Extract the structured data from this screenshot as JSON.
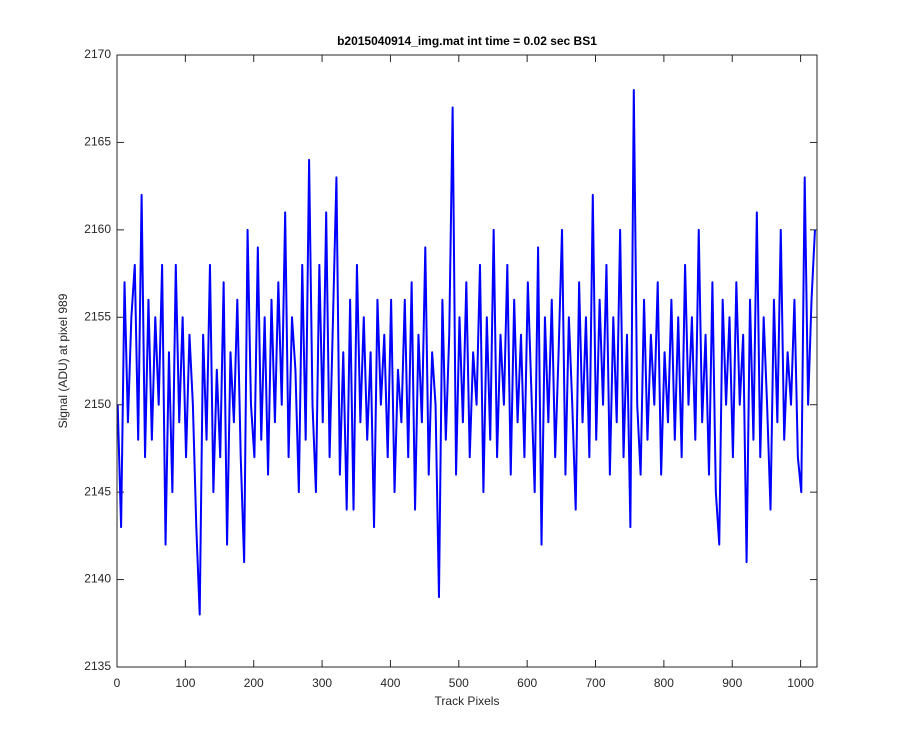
{
  "chart_data": {
    "type": "line",
    "title": "b2015040914_img.mat int time = 0.02 sec   BS1",
    "xlabel": "Track Pixels",
    "ylabel": "Signal (ADU) at pixel 989",
    "xlim": [
      0,
      1024
    ],
    "xticks": [
      0,
      100,
      200,
      300,
      400,
      500,
      600,
      700,
      800,
      900,
      1000
    ],
    "ylim": [
      2135,
      2170
    ],
    "yticks": [
      2135,
      2140,
      2145,
      2150,
      2155,
      2160,
      2165,
      2170
    ],
    "grid": false,
    "x": [
      1,
      6,
      11,
      16,
      21,
      26,
      31,
      36,
      41,
      46,
      51,
      56,
      61,
      66,
      71,
      76,
      81,
      86,
      91,
      96,
      101,
      106,
      111,
      116,
      121,
      126,
      131,
      136,
      141,
      146,
      151,
      156,
      161,
      166,
      171,
      176,
      181,
      186,
      191,
      196,
      201,
      206,
      211,
      216,
      221,
      226,
      231,
      236,
      241,
      246,
      251,
      256,
      261,
      266,
      271,
      276,
      281,
      286,
      291,
      296,
      301,
      306,
      311,
      316,
      321,
      326,
      331,
      336,
      341,
      346,
      351,
      356,
      361,
      366,
      371,
      376,
      381,
      386,
      391,
      396,
      401,
      406,
      411,
      416,
      421,
      426,
      431,
      436,
      441,
      446,
      451,
      456,
      461,
      466,
      471,
      476,
      481,
      486,
      491,
      496,
      501,
      506,
      511,
      516,
      521,
      526,
      531,
      536,
      541,
      546,
      551,
      556,
      561,
      566,
      571,
      576,
      581,
      586,
      591,
      596,
      601,
      606,
      611,
      616,
      621,
      626,
      631,
      636,
      641,
      646,
      651,
      656,
      661,
      666,
      671,
      676,
      681,
      686,
      691,
      696,
      701,
      706,
      711,
      716,
      721,
      726,
      731,
      736,
      741,
      746,
      751,
      756,
      761,
      766,
      771,
      776,
      781,
      786,
      791,
      796,
      801,
      806,
      811,
      816,
      821,
      826,
      831,
      836,
      841,
      846,
      851,
      856,
      861,
      866,
      871,
      876,
      881,
      886,
      891,
      896,
      901,
      906,
      911,
      916,
      921,
      926,
      931,
      936,
      941,
      946,
      951,
      956,
      961,
      966,
      971,
      976,
      981,
      986,
      991,
      996,
      1001,
      1006,
      1011,
      1016,
      1021
    ],
    "series": [
      {
        "color": "#0000ff",
        "values": [
          2150,
          2143,
          2157,
          2149,
          2155,
          2158,
          2148,
          2162,
          2147,
          2156,
          2148,
          2155,
          2150,
          2158,
          2142,
          2153,
          2145,
          2158,
          2149,
          2155,
          2147,
          2154,
          2150,
          2143,
          2138,
          2154,
          2148,
          2158,
          2145,
          2152,
          2147,
          2157,
          2142,
          2153,
          2149,
          2156,
          2147,
          2141,
          2160,
          2150,
          2147,
          2159,
          2148,
          2155,
          2146,
          2156,
          2149,
          2157,
          2150,
          2161,
          2147,
          2155,
          2152,
          2145,
          2158,
          2148,
          2164,
          2150,
          2145,
          2158,
          2149,
          2161,
          2147,
          2155,
          2163,
          2146,
          2153,
          2144,
          2156,
          2144,
          2158,
          2149,
          2155,
          2148,
          2153,
          2143,
          2156,
          2150,
          2154,
          2147,
          2156,
          2145,
          2152,
          2149,
          2156,
          2147,
          2157,
          2144,
          2154,
          2149,
          2159,
          2146,
          2153,
          2150,
          2139,
          2156,
          2148,
          2154,
          2167,
          2146,
          2155,
          2149,
          2157,
          2147,
          2153,
          2150,
          2158,
          2145,
          2155,
          2148,
          2160,
          2147,
          2154,
          2150,
          2158,
          2146,
          2156,
          2149,
          2154,
          2147,
          2157,
          2151,
          2145,
          2159,
          2142,
          2155,
          2149,
          2156,
          2147,
          2153,
          2160,
          2146,
          2155,
          2150,
          2144,
          2157,
          2149,
          2155,
          2147,
          2162,
          2148,
          2156,
          2150,
          2158,
          2146,
          2155,
          2149,
          2160,
          2147,
          2154,
          2143,
          2168,
          2150,
          2146,
          2156,
          2148,
          2154,
          2150,
          2157,
          2146,
          2153,
          2149,
          2156,
          2148,
          2155,
          2147,
          2158,
          2150,
          2155,
          2148,
          2160,
          2149,
          2154,
          2146,
          2157,
          2145,
          2142,
          2156,
          2150,
          2155,
          2147,
          2157,
          2150,
          2154,
          2141,
          2156,
          2148,
          2161,
          2147,
          2155,
          2150,
          2144,
          2156,
          2149,
          2160,
          2148,
          2153,
          2150,
          2156,
          2147,
          2145,
          2163,
          2150,
          2156,
          2160
        ]
      }
    ]
  }
}
